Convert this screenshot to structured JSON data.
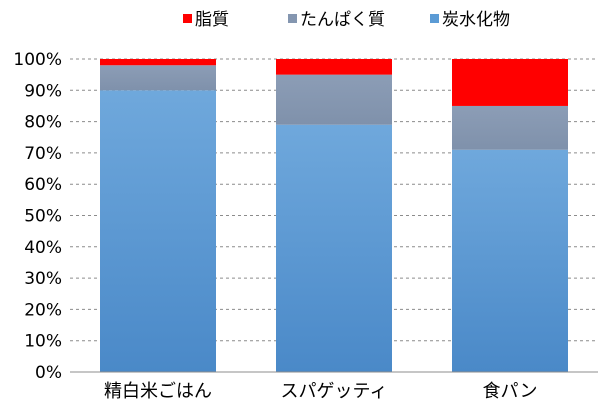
{
  "chart_data": {
    "type": "bar",
    "stacked": true,
    "percent": true,
    "categories": [
      "精白米ごはん",
      "スパゲッティ",
      "食パン"
    ],
    "series": [
      {
        "name": "炭水化物",
        "values": [
          90,
          79,
          71
        ],
        "color": "#5b9bd5"
      },
      {
        "name": "たんぱく質",
        "values": [
          8,
          16,
          14
        ],
        "color": "#8496b0"
      },
      {
        "name": "脂質",
        "values": [
          2,
          5,
          15
        ],
        "color": "#ff0000"
      }
    ],
    "legend_order": [
      "脂質",
      "たんぱく質",
      "炭水化物"
    ],
    "y_ticks": [
      "0%",
      "10%",
      "20%",
      "30%",
      "40%",
      "50%",
      "60%",
      "70%",
      "80%",
      "90%",
      "100%"
    ],
    "ylim": [
      0,
      100
    ],
    "legend_position": "top",
    "grid": "dashed-horizontal"
  }
}
